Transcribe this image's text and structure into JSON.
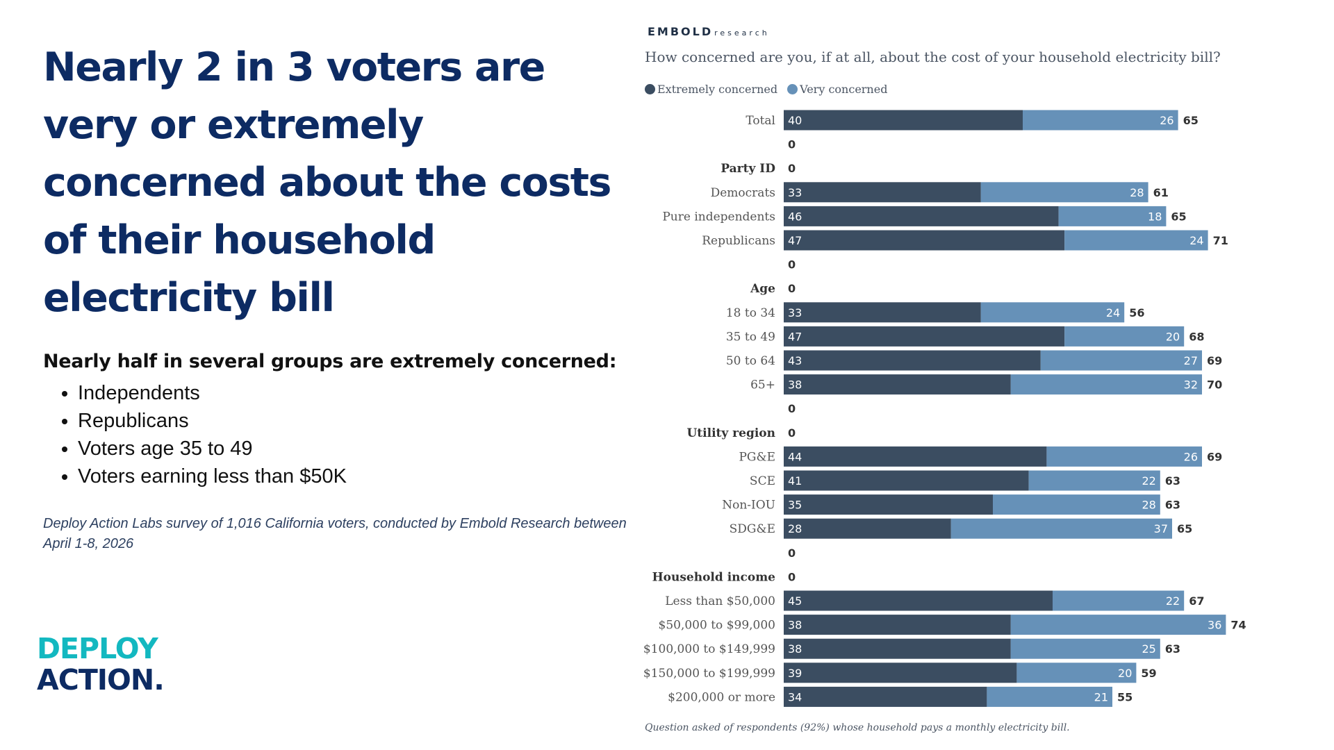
{
  "slide": {
    "headline": "Nearly 2 in 3 voters are very or extremely concerned about the costs of their household electricity bill",
    "subhead": "Nearly half in several groups are extremely concerned:",
    "bullets": [
      "Independents",
      "Republicans",
      "Voters age 35 to 49",
      "Voters earning less than $50K"
    ],
    "source": "Deploy Action Labs survey of 1,016 California voters, conducted by Embold Research between April 1-8, 2026",
    "logo_line1": "DEPLOY",
    "logo_line2": "ACTION",
    "logo_dot": "."
  },
  "chart_header": {
    "brand_main": "EMBOLD",
    "brand_sub": "research",
    "question": "How concerned are you, if at all, about the cost of your household electricity bill?",
    "footnote": "Question asked of respondents (92%) whose household pays a monthly electricity bill."
  },
  "chart_data": {
    "type": "bar",
    "orientation": "horizontal",
    "stacked": true,
    "legend_position": "top-left",
    "grid": false,
    "xlim": [
      0,
      100
    ],
    "series": [
      {
        "name": "Extremely concerned",
        "color": "#3b4d61"
      },
      {
        "name": "Very concerned",
        "color": "#6691b8"
      }
    ],
    "rows": [
      {
        "label": "Total",
        "header": false,
        "extremely": 40,
        "very": 26,
        "total": 65
      },
      {
        "label": "",
        "header": false,
        "extremely": null,
        "very": null,
        "total": 0
      },
      {
        "label": "Party ID",
        "header": true,
        "extremely": null,
        "very": null,
        "total": 0
      },
      {
        "label": "Democrats",
        "header": false,
        "extremely": 33,
        "very": 28,
        "total": 61
      },
      {
        "label": "Pure independents",
        "header": false,
        "extremely": 46,
        "very": 18,
        "total": 65
      },
      {
        "label": "Republicans",
        "header": false,
        "extremely": 47,
        "very": 24,
        "total": 71
      },
      {
        "label": "",
        "header": false,
        "extremely": null,
        "very": null,
        "total": 0
      },
      {
        "label": "Age",
        "header": true,
        "extremely": null,
        "very": null,
        "total": 0
      },
      {
        "label": "18 to 34",
        "header": false,
        "extremely": 33,
        "very": 24,
        "total": 56
      },
      {
        "label": "35 to 49",
        "header": false,
        "extremely": 47,
        "very": 20,
        "total": 68
      },
      {
        "label": "50 to 64",
        "header": false,
        "extremely": 43,
        "very": 27,
        "total": 69
      },
      {
        "label": "65+",
        "header": false,
        "extremely": 38,
        "very": 32,
        "total": 70
      },
      {
        "label": "",
        "header": false,
        "extremely": null,
        "very": null,
        "total": 0
      },
      {
        "label": "Utility region",
        "header": true,
        "extremely": null,
        "very": null,
        "total": 0
      },
      {
        "label": "PG&E",
        "header": false,
        "extremely": 44,
        "very": 26,
        "total": 69
      },
      {
        "label": "SCE",
        "header": false,
        "extremely": 41,
        "very": 22,
        "total": 63
      },
      {
        "label": "Non-IOU",
        "header": false,
        "extremely": 35,
        "very": 28,
        "total": 63
      },
      {
        "label": "SDG&E",
        "header": false,
        "extremely": 28,
        "very": 37,
        "total": 65
      },
      {
        "label": "",
        "header": false,
        "extremely": null,
        "very": null,
        "total": 0
      },
      {
        "label": "Household income",
        "header": true,
        "extremely": null,
        "very": null,
        "total": 0
      },
      {
        "label": "Less than $50,000",
        "header": false,
        "extremely": 45,
        "very": 22,
        "total": 67
      },
      {
        "label": "$50,000 to $99,000",
        "header": false,
        "extremely": 38,
        "very": 36,
        "total": 74
      },
      {
        "label": "$100,000 to $149,999",
        "header": false,
        "extremely": 38,
        "very": 25,
        "total": 63
      },
      {
        "label": "$150,000 to $199,999",
        "header": false,
        "extremely": 39,
        "very": 20,
        "total": 59
      },
      {
        "label": "$200,000 or more",
        "header": false,
        "extremely": 34,
        "very": 21,
        "total": 55
      }
    ]
  }
}
